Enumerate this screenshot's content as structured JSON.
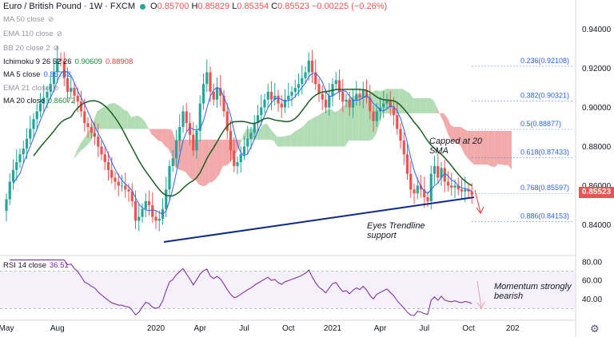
{
  "header": {
    "symbol": "Euro / British Pound · 1W · FXCM",
    "ohlc": {
      "o_label": "O",
      "o": "0.85700",
      "h_label": "H",
      "h": "0.85829",
      "l_label": "L",
      "l": "0.85354",
      "c_label": "C",
      "c": "0.85523",
      "change": "−0.00225 (−0.26%)"
    }
  },
  "indicators": [
    {
      "label": "MA 50 close",
      "value": "",
      "muted": true
    },
    {
      "label": "EMA 110 close",
      "value": "",
      "muted": true
    },
    {
      "label": "BB 20 close 2",
      "value": "",
      "muted": true
    },
    {
      "label": "Ichimoku 9 26 52 26",
      "value": "0.90609",
      "value2": "0.88908",
      "muted": false
    },
    {
      "label": "MA 5 close",
      "value": "0.85762",
      "muted": false
    },
    {
      "label": "EMA 21 close",
      "value": "",
      "muted": true
    },
    {
      "label": "MA 20 close",
      "value": "0.86072",
      "muted": false
    }
  ],
  "rsi": {
    "label": "RSI 14 close",
    "value": "36.51"
  },
  "price_axis": [
    "0.94000",
    "0.92000",
    "0.90000",
    "0.88000",
    "0.86000",
    "0.84000"
  ],
  "rsi_axis": [
    "80.00",
    "60.00",
    "40.00"
  ],
  "last_price": "0.85523",
  "time_axis": [
    "May",
    "Aug",
    "2020",
    "Apr",
    "Jul",
    "Oct",
    "2021",
    "Apr",
    "Jul",
    "Oct",
    "202"
  ],
  "fib_levels": [
    {
      "label": "0.236(0.92108)",
      "value": 0.92108
    },
    {
      "label": "0.382(0.90321)",
      "value": 0.90321
    },
    {
      "label": "0.5(0.88877)",
      "value": 0.88877
    },
    {
      "label": "0.618(0.87433)",
      "value": 0.87433
    },
    {
      "label": "0.768(0.85597)",
      "value": 0.85597
    },
    {
      "label": "0.886(0.84153)",
      "value": 0.84153
    }
  ],
  "annotations": {
    "capped": "Capped at 20 SMA",
    "trendline": "Eyes Trendline support",
    "momentum": "Momentum strongly bearish"
  },
  "colors": {
    "up": "#26a69a",
    "down": "#ef5350",
    "ma5": "#2962ff",
    "ma20": "#1b5e20",
    "trend": "#0d2a8a",
    "rsi": "#7b1fa2",
    "cloud_bull": "#a5d6a7",
    "cloud_bear": "#ef9a9a",
    "fib": "#2962ff"
  },
  "chart_data": {
    "type": "candlestick",
    "y_range": [
      0.825,
      0.955
    ],
    "rsi_range": [
      20,
      85
    ],
    "closes": [
      0.853,
      0.862,
      0.868,
      0.872,
      0.876,
      0.879,
      0.884,
      0.889,
      0.894,
      0.898,
      0.902,
      0.905,
      0.908,
      0.912,
      0.918,
      0.925,
      0.924,
      0.915,
      0.908,
      0.91,
      0.906,
      0.903,
      0.898,
      0.892,
      0.89,
      0.887,
      0.885,
      0.88,
      0.876,
      0.872,
      0.868,
      0.864,
      0.862,
      0.86,
      0.86,
      0.858,
      0.857,
      0.852,
      0.842,
      0.844,
      0.848,
      0.852,
      0.85,
      0.844,
      0.842,
      0.843,
      0.848,
      0.858,
      0.87,
      0.874,
      0.883,
      0.89,
      0.898,
      0.892,
      0.886,
      0.878,
      0.888,
      0.902,
      0.912,
      0.918,
      0.908,
      0.904,
      0.91,
      0.906,
      0.898,
      0.888,
      0.878,
      0.87,
      0.872,
      0.876,
      0.88,
      0.884,
      0.887,
      0.892,
      0.896,
      0.9,
      0.904,
      0.908,
      0.904,
      0.906,
      0.902,
      0.9,
      0.904,
      0.906,
      0.908,
      0.91,
      0.912,
      0.915,
      0.918,
      0.924,
      0.918,
      0.912,
      0.907,
      0.904,
      0.9,
      0.906,
      0.912,
      0.914,
      0.908,
      0.903,
      0.904,
      0.9,
      0.904,
      0.907,
      0.905,
      0.909,
      0.905,
      0.898,
      0.893,
      0.898,
      0.9,
      0.902,
      0.904,
      0.9,
      0.896,
      0.889,
      0.883,
      0.876,
      0.866,
      0.858,
      0.856,
      0.86,
      0.858,
      0.854,
      0.852,
      0.866,
      0.87,
      0.864,
      0.869,
      0.862,
      0.86,
      0.859,
      0.86,
      0.858,
      0.857,
      0.858,
      0.857,
      0.855
    ]
  }
}
